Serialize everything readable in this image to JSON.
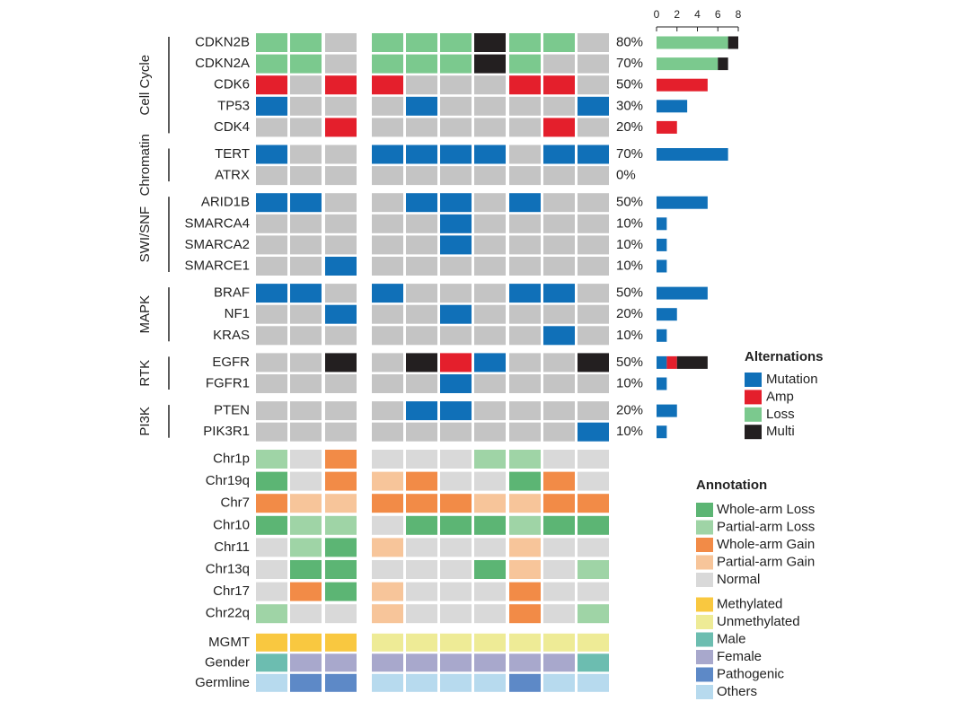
{
  "chart_data": {
    "type": "oncoprint",
    "none_color": "#c4c4c4",
    "xlim": [
      0,
      8
    ],
    "xticks": [
      0,
      2,
      4,
      6,
      8
    ],
    "alterations": {
      "title": "Alternations",
      "items": [
        {
          "name": "Mutation",
          "color": "#1070b8"
        },
        {
          "name": "Amp",
          "color": "#e41f2c"
        },
        {
          "name": "Loss",
          "color": "#7bc98e"
        },
        {
          "name": "Multi",
          "color": "#231f20"
        }
      ]
    },
    "annotation_legend": {
      "title": "Annotation",
      "items": [
        {
          "name": "Whole-arm Loss",
          "color": "#5cb574"
        },
        {
          "name": "Partial-arm Loss",
          "color": "#9fd4a6"
        },
        {
          "name": "Whole-arm Gain",
          "color": "#f28b47"
        },
        {
          "name": "Partial-arm Gain",
          "color": "#f7c59a"
        },
        {
          "name": "Normal",
          "color": "#d9d9d9"
        },
        {
          "name": "Methylated",
          "color": "#f9c840"
        },
        {
          "name": "Unmethylated",
          "color": "#eeeb96"
        },
        {
          "name": "Male",
          "color": "#6cbdb0"
        },
        {
          "name": "Female",
          "color": "#a8a8cc"
        },
        {
          "name": "Pathogenic",
          "color": "#5d89c7"
        },
        {
          "name": "Others",
          "color": "#b7daee"
        }
      ]
    },
    "groups": [
      {
        "name": "Cell Cycle",
        "genes": [
          {
            "name": "CDKN2B",
            "percent": "80%",
            "counts": [
              0,
              0,
              7,
              1
            ],
            "cells": [
              "Loss",
              "Loss",
              null,
              "Loss",
              "Loss",
              "Loss",
              "Multi",
              "Loss",
              "Loss",
              null
            ]
          },
          {
            "name": "CDKN2A",
            "percent": "70%",
            "counts": [
              0,
              0,
              6,
              1
            ],
            "cells": [
              "Loss",
              "Loss",
              null,
              "Loss",
              "Loss",
              "Loss",
              "Multi",
              "Loss",
              null,
              null
            ]
          },
          {
            "name": "CDK6",
            "percent": "50%",
            "counts": [
              0,
              5,
              0,
              0
            ],
            "cells": [
              "Amp",
              null,
              "Amp",
              "Amp",
              null,
              null,
              null,
              "Amp",
              "Amp",
              null
            ]
          },
          {
            "name": "TP53",
            "percent": "30%",
            "counts": [
              3,
              0,
              0,
              0
            ],
            "cells": [
              "Mutation",
              null,
              null,
              null,
              "Mutation",
              null,
              null,
              null,
              null,
              "Mutation"
            ]
          },
          {
            "name": "CDK4",
            "percent": "20%",
            "counts": [
              0,
              2,
              0,
              0
            ],
            "cells": [
              null,
              null,
              "Amp",
              null,
              null,
              null,
              null,
              null,
              "Amp",
              null
            ]
          }
        ]
      },
      {
        "name": "Chromatin",
        "genes": [
          {
            "name": "TERT",
            "percent": "70%",
            "counts": [
              7,
              0,
              0,
              0
            ],
            "cells": [
              "Mutation",
              null,
              null,
              "Mutation",
              "Mutation",
              "Mutation",
              "Mutation",
              null,
              "Mutation",
              "Mutation"
            ]
          },
          {
            "name": "ATRX",
            "percent": "0%",
            "counts": [
              0,
              0,
              0,
              0
            ],
            "cells": [
              null,
              null,
              null,
              null,
              null,
              null,
              null,
              null,
              null,
              null
            ]
          }
        ]
      },
      {
        "name": "SWI/SNF",
        "genes": [
          {
            "name": "ARID1B",
            "percent": "50%",
            "counts": [
              5,
              0,
              0,
              0
            ],
            "cells": [
              "Mutation",
              "Mutation",
              null,
              null,
              "Mutation",
              "Mutation",
              null,
              "Mutation",
              null,
              null
            ]
          },
          {
            "name": "SMARCA4",
            "percent": "10%",
            "counts": [
              1,
              0,
              0,
              0
            ],
            "cells": [
              null,
              null,
              null,
              null,
              null,
              "Mutation",
              null,
              null,
              null,
              null
            ]
          },
          {
            "name": "SMARCA2",
            "percent": "10%",
            "counts": [
              1,
              0,
              0,
              0
            ],
            "cells": [
              null,
              null,
              null,
              null,
              null,
              "Mutation",
              null,
              null,
              null,
              null
            ]
          },
          {
            "name": "SMARCE1",
            "percent": "10%",
            "counts": [
              1,
              0,
              0,
              0
            ],
            "cells": [
              null,
              null,
              "Mutation",
              null,
              null,
              null,
              null,
              null,
              null,
              null
            ]
          }
        ]
      },
      {
        "name": "MAPK",
        "genes": [
          {
            "name": "BRAF",
            "percent": "50%",
            "counts": [
              5,
              0,
              0,
              0
            ],
            "cells": [
              "Mutation",
              "Mutation",
              null,
              "Mutation",
              null,
              null,
              null,
              "Mutation",
              "Mutation",
              null
            ]
          },
          {
            "name": "NF1",
            "percent": "20%",
            "counts": [
              2,
              0,
              0,
              0
            ],
            "cells": [
              null,
              null,
              "Mutation",
              null,
              null,
              "Mutation",
              null,
              null,
              null,
              null
            ]
          },
          {
            "name": "KRAS",
            "percent": "10%",
            "counts": [
              1,
              0,
              0,
              0
            ],
            "cells": [
              null,
              null,
              null,
              null,
              null,
              null,
              null,
              null,
              "Mutation",
              null
            ]
          }
        ]
      },
      {
        "name": "RTK",
        "genes": [
          {
            "name": "EGFR",
            "percent": "50%",
            "counts": [
              1,
              1,
              0,
              3
            ],
            "cells": [
              null,
              null,
              "Multi",
              null,
              "Multi",
              "Amp",
              "Mutation",
              null,
              null,
              "Multi"
            ]
          },
          {
            "name": "FGFR1",
            "percent": "10%",
            "counts": [
              1,
              0,
              0,
              0
            ],
            "cells": [
              null,
              null,
              null,
              null,
              null,
              "Mutation",
              null,
              null,
              null,
              null
            ]
          }
        ]
      },
      {
        "name": "PI3K",
        "genes": [
          {
            "name": "PTEN",
            "percent": "20%",
            "counts": [
              2,
              0,
              0,
              0
            ],
            "cells": [
              null,
              null,
              null,
              null,
              "Mutation",
              "Mutation",
              null,
              null,
              null,
              null
            ]
          },
          {
            "name": "PIK3R1",
            "percent": "10%",
            "counts": [
              1,
              0,
              0,
              0
            ],
            "cells": [
              null,
              null,
              null,
              null,
              null,
              null,
              null,
              null,
              null,
              "Mutation"
            ]
          }
        ]
      }
    ],
    "annotation_rows": [
      {
        "name": "Chr1p",
        "cells": [
          "Partial-arm Loss",
          "Normal",
          "Whole-arm Gain",
          "Normal",
          "Normal",
          "Normal",
          "Partial-arm Loss",
          "Partial-arm Loss",
          "Normal",
          "Normal"
        ]
      },
      {
        "name": "Chr19q",
        "cells": [
          "Whole-arm Loss",
          "Normal",
          "Whole-arm Gain",
          "Partial-arm Gain",
          "Whole-arm Gain",
          "Normal",
          "Normal",
          "Whole-arm Loss",
          "Whole-arm Gain",
          "Normal"
        ]
      },
      {
        "name": "Chr7",
        "cells": [
          "Whole-arm Gain",
          "Partial-arm Gain",
          "Partial-arm Gain",
          "Whole-arm Gain",
          "Whole-arm Gain",
          "Whole-arm Gain",
          "Partial-arm Gain",
          "Partial-arm Gain",
          "Whole-arm Gain",
          "Whole-arm Gain"
        ]
      },
      {
        "name": "Chr10",
        "cells": [
          "Whole-arm Loss",
          "Partial-arm Loss",
          "Partial-arm Loss",
          "Normal",
          "Whole-arm Loss",
          "Whole-arm Loss",
          "Whole-arm Loss",
          "Partial-arm Loss",
          "Whole-arm Loss",
          "Whole-arm Loss"
        ]
      },
      {
        "name": "Chr11",
        "cells": [
          "Normal",
          "Partial-arm Loss",
          "Whole-arm Loss",
          "Partial-arm Gain",
          "Normal",
          "Normal",
          "Normal",
          "Partial-arm Gain",
          "Normal",
          "Normal"
        ]
      },
      {
        "name": "Chr13q",
        "cells": [
          "Normal",
          "Whole-arm Loss",
          "Whole-arm Loss",
          "Normal",
          "Normal",
          "Normal",
          "Whole-arm Loss",
          "Partial-arm Gain",
          "Normal",
          "Partial-arm Loss"
        ]
      },
      {
        "name": "Chr17",
        "cells": [
          "Normal",
          "Whole-arm Gain",
          "Whole-arm Loss",
          "Partial-arm Gain",
          "Normal",
          "Normal",
          "Normal",
          "Whole-arm Gain",
          "Normal",
          "Normal"
        ]
      },
      {
        "name": "Chr22q",
        "cells": [
          "Partial-arm Loss",
          "Normal",
          "Normal",
          "Partial-arm Gain",
          "Normal",
          "Normal",
          "Normal",
          "Whole-arm Gain",
          "Normal",
          "Partial-arm Loss"
        ]
      },
      {
        "name": "MGMT",
        "cells": [
          "Methylated",
          "Methylated",
          "Methylated",
          "Unmethylated",
          "Unmethylated",
          "Unmethylated",
          "Unmethylated",
          "Unmethylated",
          "Unmethylated",
          "Unmethylated"
        ]
      },
      {
        "name": "Gender",
        "cells": [
          "Male",
          "Female",
          "Female",
          "Female",
          "Female",
          "Female",
          "Female",
          "Female",
          "Female",
          "Male"
        ]
      },
      {
        "name": "Germline",
        "cells": [
          "Others",
          "Pathogenic",
          "Pathogenic",
          "Others",
          "Others",
          "Others",
          "Others",
          "Pathogenic",
          "Others",
          "Others"
        ]
      }
    ]
  }
}
